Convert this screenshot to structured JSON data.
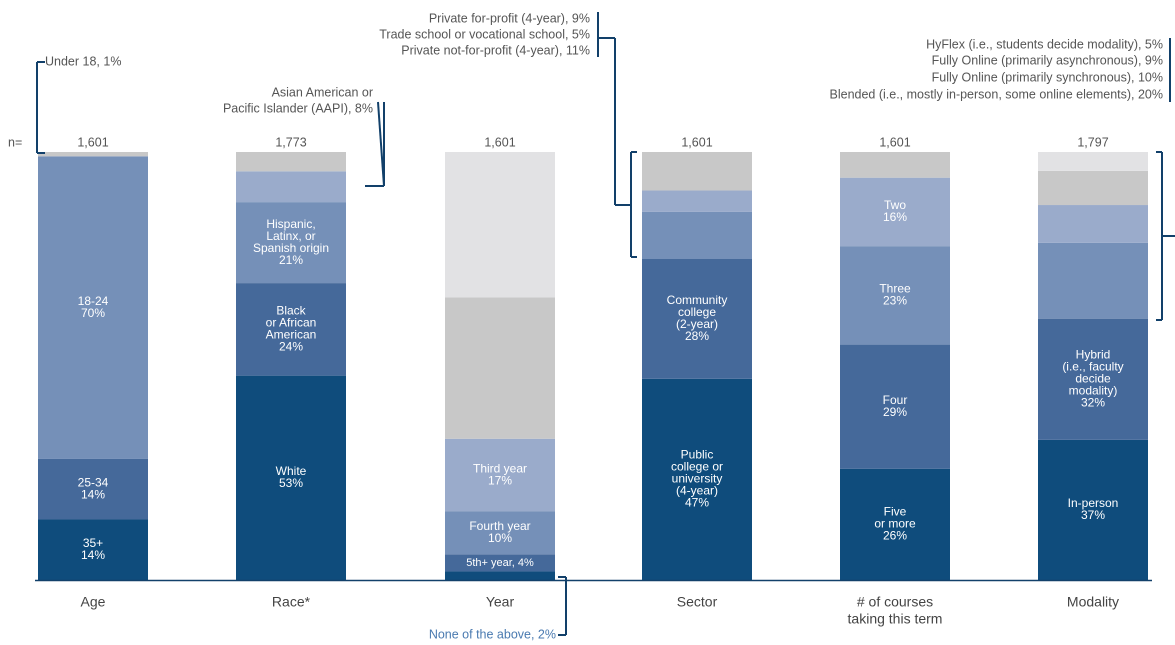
{
  "chart_data": {
    "type": "stacked_bar_100",
    "n_label": "n=",
    "categories": [
      [
        "Age"
      ],
      [
        "Race*"
      ],
      [
        "Year"
      ],
      [
        "Sector"
      ],
      [
        "# of courses",
        "taking this term"
      ],
      [
        "Modality"
      ]
    ],
    "bars": [
      {
        "n": {
          "value": 1601,
          "label": "1,601"
        },
        "segments": [
          {
            "label": "35+",
            "value": 14,
            "value_label": "14%",
            "color": "#0f4c7c"
          },
          {
            "label": "25-34",
            "value": 14,
            "value_label": "14%",
            "color": "#45699a"
          },
          {
            "label": "18-24",
            "value": 70,
            "value_label": "70%",
            "color": "#7590b8"
          },
          {
            "label": "Under 18, 1%",
            "value": 1,
            "color": "#c8c8c8"
          }
        ]
      },
      {
        "n": {
          "value": 1773,
          "label": "1,773"
        },
        "segments": [
          {
            "label": "White",
            "value": 53,
            "value_label": "53%",
            "color": "#0f4c7c"
          },
          {
            "label": [
              "Black",
              "or African",
              "American"
            ],
            "value": 24,
            "value_label": "24%",
            "color": "#45699a"
          },
          {
            "label": [
              "Hispanic,",
              "Latinx, or",
              "Spanish origin"
            ],
            "value": 21,
            "value_label": "21%",
            "color": "#7590b8"
          },
          {
            "label": [
              "Asian American or",
              "Pacific Islander (AAPI), 8%"
            ],
            "value": 8,
            "color": "#9aabcb"
          },
          {
            "label": null,
            "value": 5,
            "color": "#c8c8c8"
          }
        ]
      },
      {
        "n": {
          "value": 1601,
          "label": "1,601"
        },
        "segments": [
          {
            "label": "None of the above, 2%",
            "value": 2,
            "color": "#0f4c7c"
          },
          {
            "label": "5th+ year, 4%",
            "value": 4,
            "color": "#45699a"
          },
          {
            "label": "Fourth year",
            "value": 10,
            "value_label": "10%",
            "color": "#7590b8"
          },
          {
            "label": "Third year",
            "value": 17,
            "value_label": "17%",
            "color": "#9aabcb"
          },
          {
            "label": null,
            "value": 33,
            "color": "#c8c8c8"
          },
          {
            "label": null,
            "value": 34,
            "color": "#e2e2e4"
          }
        ]
      },
      {
        "n": {
          "value": 1601,
          "label": "1,601"
        },
        "segments": [
          {
            "label": [
              "Public",
              "college or",
              "university",
              "(4-year)"
            ],
            "value": 47,
            "value_label": "47%",
            "color": "#0f4c7c"
          },
          {
            "label": [
              "Community",
              "college",
              "(2-year)"
            ],
            "value": 28,
            "value_label": "28%",
            "color": "#45699a"
          },
          {
            "label": "Private not-for-profit (4-year), 11%",
            "value": 11,
            "color": "#7590b8"
          },
          {
            "label": "Trade school or vocational school, 5%",
            "value": 5,
            "color": "#9aabcb"
          },
          {
            "label": "Private for-profit (4-year), 9%",
            "value": 9,
            "color": "#c8c8c8"
          }
        ]
      },
      {
        "n": {
          "value": 1601,
          "label": "1,601"
        },
        "segments": [
          {
            "label": [
              "Five",
              "or more"
            ],
            "value": 26,
            "value_label": "26%",
            "color": "#0f4c7c"
          },
          {
            "label": "Four",
            "value": 29,
            "value_label": "29%",
            "color": "#45699a"
          },
          {
            "label": "Three",
            "value": 23,
            "value_label": "23%",
            "color": "#7590b8"
          },
          {
            "label": "Two",
            "value": 16,
            "value_label": "16%",
            "color": "#9aabcb"
          },
          {
            "label": null,
            "value": 6,
            "color": "#c8c8c8"
          }
        ]
      },
      {
        "n": {
          "value": 1797,
          "label": "1,797"
        },
        "segments": [
          {
            "label": "In-person",
            "value": 37,
            "value_label": "37%",
            "color": "#0f4c7c"
          },
          {
            "label": [
              "Hybrid",
              "(i.e., faculty",
              "decide",
              "modality)"
            ],
            "value": 32,
            "value_label": "32%",
            "color": "#45699a"
          },
          {
            "label": "Blended (i.e., mostly in-person, some online elements), 20%",
            "value": 20,
            "color": "#7590b8"
          },
          {
            "label": "Fully Online (primarily synchronous), 10%",
            "value": 10,
            "color": "#9aabcb"
          },
          {
            "label": "Fully Online (primarily asynchronous), 9%",
            "value": 9,
            "color": "#c8c8c8"
          },
          {
            "label": "HyFlex (i.e., students decide modality), 5%",
            "value": 5,
            "color": "#e2e2e4"
          }
        ]
      }
    ]
  }
}
